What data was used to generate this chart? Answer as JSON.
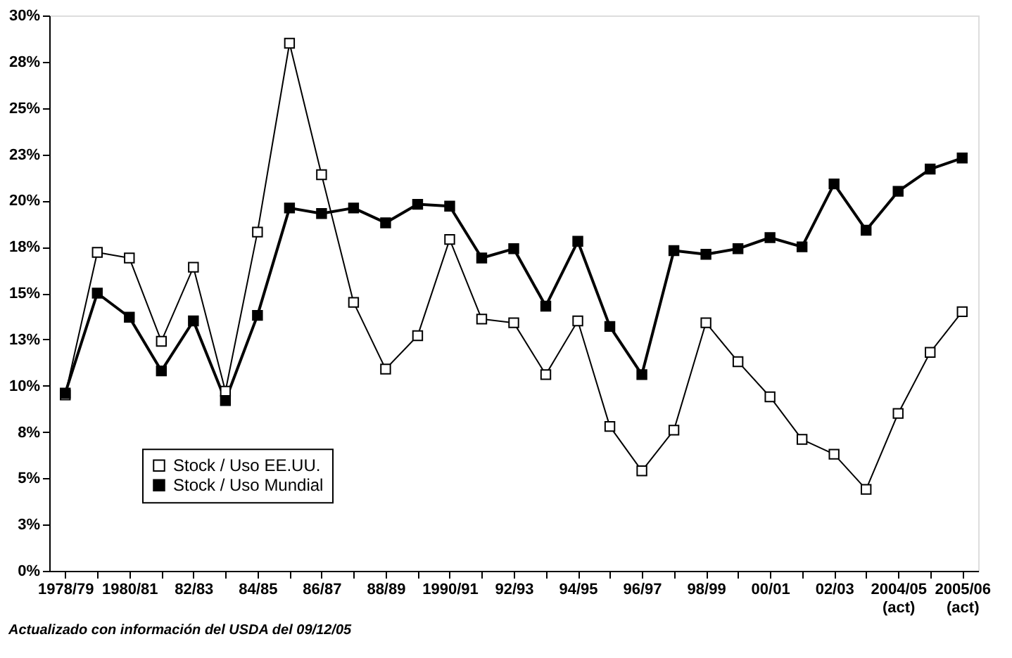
{
  "chart_data": {
    "type": "line",
    "categories": [
      "1978/79",
      null,
      "1980/81",
      null,
      "82/83",
      null,
      "84/85",
      null,
      "86/87",
      null,
      "88/89",
      null,
      "1990/91",
      null,
      "92/93",
      null,
      "94/95",
      null,
      "96/97",
      null,
      "98/99",
      null,
      "00/01",
      null,
      "02/03",
      null,
      "2004/05\n(act)",
      null,
      "2005/06\n(act)"
    ],
    "series": [
      {
        "name": "Stock / Uso EE.UU.",
        "color": "#ffffff",
        "values": [
          9.5,
          17.2,
          16.9,
          12.4,
          16.4,
          9.7,
          18.3,
          28.5,
          21.4,
          14.5,
          10.9,
          12.7,
          17.9,
          13.6,
          13.4,
          10.6,
          13.5,
          7.8,
          5.4,
          7.6,
          13.4,
          11.3,
          9.4,
          7.1,
          6.3,
          4.4,
          8.5,
          11.8,
          14.0
        ]
      },
      {
        "name": "Stock / Uso Mundial",
        "color": "#000000",
        "values": [
          9.6,
          15.0,
          13.7,
          10.8,
          13.5,
          9.2,
          13.8,
          19.6,
          19.3,
          19.6,
          18.8,
          19.8,
          19.7,
          16.9,
          17.4,
          14.3,
          17.8,
          13.2,
          10.6,
          17.3,
          17.1,
          17.4,
          18.0,
          17.5,
          20.9,
          18.4,
          20.5,
          21.7,
          22.3
        ]
      }
    ],
    "ylim": [
      0,
      30
    ],
    "yticks": [
      {
        "value": 0,
        "label": "0%"
      },
      {
        "value": 2.5,
        "label": "3%"
      },
      {
        "value": 5,
        "label": "5%"
      },
      {
        "value": 7.5,
        "label": "8%"
      },
      {
        "value": 10,
        "label": "10%"
      },
      {
        "value": 12.5,
        "label": "13%"
      },
      {
        "value": 15,
        "label": "15%"
      },
      {
        "value": 17.5,
        "label": "18%"
      },
      {
        "value": 20,
        "label": "20%"
      },
      {
        "value": 22.5,
        "label": "23%"
      },
      {
        "value": 25,
        "label": "25%"
      },
      {
        "value": 27.5,
        "label": "28%"
      },
      {
        "value": 30,
        "label": "30%"
      }
    ],
    "annotations": [
      "Actualizado con información del USDA del 09/12/05"
    ],
    "grid": false,
    "legend": "bottom left",
    "marker": "square",
    "line_style": "solid"
  }
}
